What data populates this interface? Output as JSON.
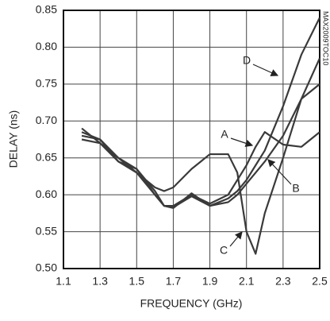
{
  "chart_data": {
    "type": "line",
    "xlabel": "FREQUENCY (GHz)",
    "ylabel": "DELAY (ns)",
    "x": [
      1.2,
      1.3,
      1.4,
      1.5,
      1.6,
      1.65,
      1.7,
      1.8,
      1.9,
      2.0,
      2.05,
      2.1,
      2.15,
      2.2,
      2.3,
      2.4,
      2.5
    ],
    "series": [
      {
        "name": "A",
        "color": "#3a3a3a",
        "values": [
          0.68,
          0.675,
          0.645,
          0.635,
          0.6,
          0.585,
          0.585,
          0.6,
          0.588,
          0.6,
          0.62,
          0.64,
          0.665,
          0.685,
          0.668,
          0.665,
          0.685
        ]
      },
      {
        "name": "B",
        "color": "#3a3a3a",
        "values": [
          0.675,
          0.67,
          0.645,
          0.63,
          0.6,
          0.585,
          0.583,
          0.598,
          0.585,
          0.59,
          0.6,
          0.615,
          0.63,
          0.645,
          0.68,
          0.73,
          0.785
        ]
      },
      {
        "name": "C",
        "color": "#3a3a3a",
        "values": [
          0.69,
          0.67,
          0.65,
          0.63,
          0.61,
          0.605,
          0.61,
          0.635,
          0.655,
          0.655,
          0.63,
          0.55,
          0.52,
          0.575,
          0.65,
          0.73,
          0.75
        ]
      },
      {
        "name": "D",
        "color": "#3a3a3a",
        "values": [
          0.685,
          0.675,
          0.65,
          0.635,
          0.605,
          0.585,
          0.582,
          0.602,
          0.585,
          0.595,
          0.605,
          0.62,
          0.64,
          0.66,
          0.72,
          0.79,
          0.84
        ]
      }
    ],
    "xlim": [
      1.1,
      2.5
    ],
    "xticks": [
      1.1,
      1.3,
      1.5,
      1.7,
      1.9,
      2.1,
      2.3,
      2.5
    ],
    "ylim": [
      0.5,
      0.85
    ],
    "yticks": [
      {
        "value": 0.5,
        "label": "0.50"
      },
      0.55,
      {
        "value": 0.6,
        "label": "0.60"
      },
      0.65,
      {
        "value": 0.7,
        "label": "0.70"
      },
      0.75,
      {
        "value": 0.8,
        "label": "0.80"
      },
      0.85
    ],
    "grid": true,
    "annotations": [
      "MAX2009TOC10"
    ]
  }
}
